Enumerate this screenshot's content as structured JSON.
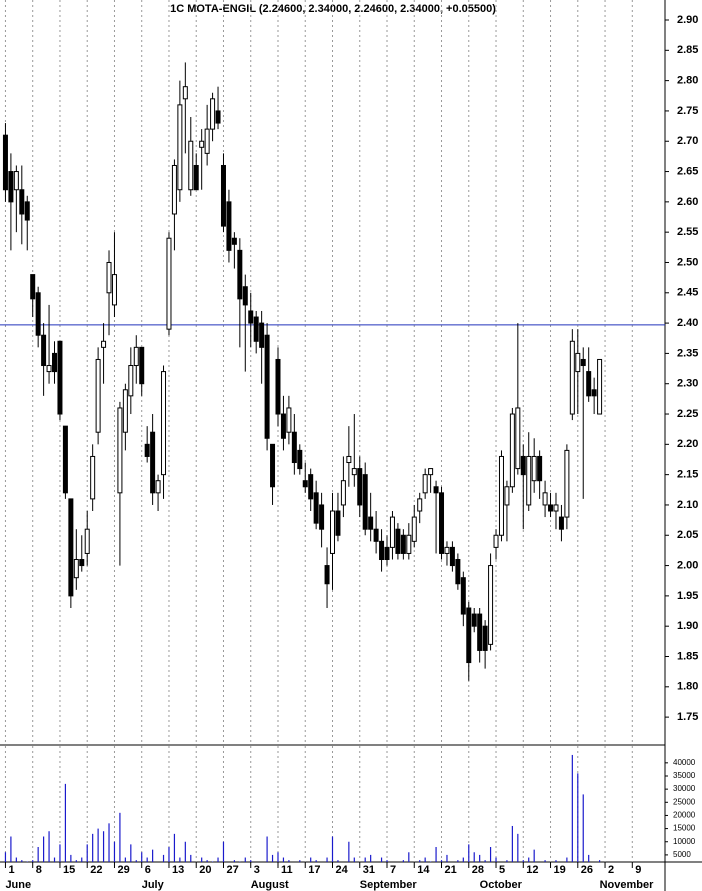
{
  "chart_data": {
    "type": "candlestick",
    "title": "1C MOTA-ENGIL (2.24600, 2.34000, 2.24600, 2.34000, +0.05500)",
    "x": [
      0,
      1,
      2,
      3,
      4,
      5,
      6,
      7,
      8,
      9,
      10,
      11,
      12,
      13,
      14,
      15,
      16,
      17,
      18,
      19,
      20,
      21,
      22,
      23,
      24,
      25,
      26,
      27,
      28,
      29,
      30,
      31,
      32,
      33,
      34,
      35,
      36,
      37,
      38,
      39,
      40,
      41,
      42,
      43,
      44,
      45,
      46,
      47,
      48,
      49,
      50,
      51,
      52,
      53,
      54,
      55,
      56,
      57,
      58,
      59,
      60,
      61,
      62,
      63,
      64,
      65,
      66,
      67,
      68,
      69,
      70,
      71,
      72,
      73,
      74,
      75,
      76,
      77,
      78,
      79,
      80,
      81,
      82,
      83,
      84,
      85,
      86,
      87,
      88,
      89,
      90,
      91,
      92,
      93,
      94,
      95,
      96,
      97,
      98,
      99,
      100,
      101,
      102,
      103,
      104,
      105,
      106,
      107,
      108,
      109
    ],
    "open": [
      2.71,
      2.65,
      2.62,
      2.62,
      2.6,
      2.48,
      2.45,
      2.38,
      2.32,
      2.35,
      2.37,
      2.23,
      2.11,
      1.98,
      2.01,
      2.02,
      2.11,
      2.22,
      2.36,
      2.45,
      2.43,
      2.12,
      2.22,
      2.28,
      2.33,
      2.36,
      2.2,
      2.22,
      2.12,
      2.15,
      2.39,
      2.58,
      2.62,
      2.77,
      2.62,
      2.66,
      2.69,
      2.68,
      2.72,
      2.75,
      2.66,
      2.6,
      2.54,
      2.52,
      2.46,
      2.42,
      2.41,
      2.4,
      2.38,
      2.2,
      2.34,
      2.25,
      2.22,
      2.22,
      2.19,
      2.14,
      2.15,
      2.12,
      2.1,
      2.0,
      2.02,
      2.09,
      2.1,
      2.17,
      2.15,
      2.16,
      2.15,
      2.08,
      2.06,
      2.04,
      2.03,
      2.03,
      2.06,
      2.05,
      2.02,
      2.04,
      2.09,
      2.12,
      2.15,
      2.13,
      2.12,
      2.02,
      2.03,
      2.01,
      1.98,
      1.93,
      1.92,
      1.92,
      1.9,
      1.87,
      2.03,
      2.05,
      2.1,
      2.13,
      2.16,
      2.18,
      2.1,
      2.14,
      2.18,
      2.1,
      2.1,
      2.09,
      2.08,
      2.08,
      2.25,
      2.32,
      2.34,
      2.32,
      2.29,
      2.25
    ],
    "high": [
      2.73,
      2.68,
      2.66,
      2.66,
      2.61,
      2.48,
      2.46,
      2.4,
      2.43,
      2.37,
      2.37,
      2.23,
      2.11,
      2.06,
      2.05,
      2.09,
      2.2,
      2.36,
      2.4,
      2.52,
      2.55,
      2.27,
      2.3,
      2.36,
      2.38,
      2.36,
      2.23,
      2.25,
      2.15,
      2.33,
      2.55,
      2.67,
      2.8,
      2.83,
      2.74,
      2.68,
      2.72,
      2.76,
      2.78,
      2.79,
      2.68,
      2.62,
      2.55,
      2.54,
      2.48,
      2.45,
      2.42,
      2.42,
      2.4,
      2.2,
      2.36,
      2.28,
      2.28,
      2.25,
      2.2,
      2.17,
      2.16,
      2.14,
      2.12,
      2.03,
      2.12,
      2.12,
      2.18,
      2.23,
      2.25,
      2.18,
      2.17,
      2.12,
      2.09,
      2.06,
      2.05,
      2.09,
      2.07,
      2.06,
      2.07,
      2.1,
      2.12,
      2.16,
      2.16,
      2.14,
      2.13,
      2.04,
      2.04,
      2.02,
      1.99,
      1.94,
      1.93,
      1.93,
      1.91,
      2.02,
      2.06,
      2.19,
      2.14,
      2.26,
      2.4,
      2.2,
      2.22,
      2.21,
      2.19,
      2.14,
      2.12,
      2.12,
      2.1,
      2.2,
      2.39,
      2.39,
      2.36,
      2.36,
      2.31,
      2.34
    ],
    "low": [
      2.6,
      2.52,
      2.55,
      2.53,
      2.52,
      2.41,
      2.36,
      2.28,
      2.3,
      2.3,
      2.24,
      2.11,
      1.93,
      1.96,
      1.99,
      2.0,
      2.09,
      2.2,
      2.3,
      2.38,
      2.41,
      2.0,
      2.19,
      2.25,
      2.3,
      2.28,
      2.17,
      2.1,
      2.09,
      2.11,
      2.38,
      2.52,
      2.6,
      2.68,
      2.61,
      2.62,
      2.62,
      2.66,
      2.7,
      2.72,
      2.55,
      2.5,
      2.49,
      2.36,
      2.32,
      2.36,
      2.35,
      2.3,
      2.19,
      2.1,
      2.23,
      2.19,
      2.2,
      2.15,
      2.15,
      2.12,
      2.09,
      2.06,
      2.03,
      1.93,
      1.96,
      2.04,
      2.08,
      2.13,
      2.13,
      2.08,
      2.05,
      2.04,
      2.02,
      1.99,
      2.0,
      2.01,
      2.01,
      2.01,
      2.01,
      2.03,
      2.07,
      2.11,
      2.12,
      2.02,
      2.01,
      2.0,
      1.99,
      1.96,
      1.9,
      1.81,
      1.89,
      1.84,
      1.83,
      1.86,
      2.01,
      2.04,
      2.04,
      2.12,
      2.15,
      2.06,
      2.09,
      2.12,
      2.11,
      2.08,
      2.08,
      2.06,
      2.04,
      2.06,
      2.24,
      2.25,
      2.11,
      2.27,
      2.25,
      2.25
    ],
    "close": [
      2.62,
      2.6,
      2.65,
      2.58,
      2.57,
      2.44,
      2.38,
      2.33,
      2.33,
      2.32,
      2.25,
      2.12,
      1.95,
      2.01,
      2.0,
      2.06,
      2.18,
      2.34,
      2.37,
      2.5,
      2.48,
      2.26,
      2.29,
      2.33,
      2.36,
      2.3,
      2.18,
      2.12,
      2.14,
      2.32,
      2.54,
      2.66,
      2.76,
      2.79,
      2.7,
      2.62,
      2.7,
      2.72,
      2.77,
      2.73,
      2.56,
      2.52,
      2.53,
      2.44,
      2.43,
      2.4,
      2.37,
      2.36,
      2.21,
      2.13,
      2.25,
      2.21,
      2.26,
      2.17,
      2.16,
      2.13,
      2.11,
      2.07,
      2.06,
      1.97,
      2.09,
      2.05,
      2.14,
      2.18,
      2.16,
      2.1,
      2.06,
      2.06,
      2.04,
      2.01,
      2.01,
      2.08,
      2.02,
      2.02,
      2.05,
      2.08,
      2.11,
      2.15,
      2.16,
      2.12,
      2.02,
      2.03,
      2.0,
      1.97,
      1.92,
      1.84,
      1.9,
      1.86,
      1.86,
      2.0,
      2.05,
      2.18,
      2.13,
      2.25,
      2.26,
      2.15,
      2.18,
      2.18,
      2.14,
      2.12,
      2.09,
      2.1,
      2.06,
      2.19,
      2.37,
      2.35,
      2.33,
      2.28,
      2.28,
      2.34
    ],
    "up_color": "#ffffff",
    "down_color": "#000000",
    "line_color": "#000000",
    "ylim": [
      1.704,
      2.933
    ],
    "yticks": [
      {
        "value": 1.75,
        "label": "1.75"
      },
      {
        "value": 1.8,
        "label": "1.80"
      },
      {
        "value": 1.85,
        "label": "1.85"
      },
      {
        "value": 1.9,
        "label": "1.90"
      },
      {
        "value": 1.95,
        "label": "1.95"
      },
      {
        "value": 2.0,
        "label": "2.00"
      },
      {
        "value": 2.05,
        "label": "2.05"
      },
      {
        "value": 2.1,
        "label": "2.10"
      },
      {
        "value": 2.15,
        "label": "2.15"
      },
      {
        "value": 2.2,
        "label": "2.20"
      },
      {
        "value": 2.25,
        "label": "2.25"
      },
      {
        "value": 2.3,
        "label": "2.30"
      },
      {
        "value": 2.35,
        "label": "2.35"
      },
      {
        "value": 2.4,
        "label": "2.40"
      },
      {
        "value": 2.45,
        "label": "2.45"
      },
      {
        "value": 2.5,
        "label": "2.50"
      },
      {
        "value": 2.55,
        "label": "2.55"
      },
      {
        "value": 2.6,
        "label": "2.60"
      },
      {
        "value": 2.65,
        "label": "2.65"
      },
      {
        "value": 2.7,
        "label": "2.70"
      },
      {
        "value": 2.75,
        "label": "2.75"
      },
      {
        "value": 2.8,
        "label": "2.80"
      },
      {
        "value": 2.85,
        "label": "2.85"
      },
      {
        "value": 2.9,
        "label": "2.90"
      }
    ],
    "hline": 2.397,
    "hline_color": "#2233bb",
    "xlim": [
      -1,
      121
    ],
    "xticks": [
      {
        "value": 0,
        "label": "1"
      },
      {
        "value": 5,
        "label": "8"
      },
      {
        "value": 10,
        "label": "15"
      },
      {
        "value": 15,
        "label": "22"
      },
      {
        "value": 20,
        "label": "29"
      },
      {
        "value": 25,
        "label": "6"
      },
      {
        "value": 30,
        "label": "13"
      },
      {
        "value": 35,
        "label": "20"
      },
      {
        "value": 40,
        "label": "27"
      },
      {
        "value": 45,
        "label": "3"
      },
      {
        "value": 50,
        "label": "11"
      },
      {
        "value": 55,
        "label": "17"
      },
      {
        "value": 60,
        "label": "24"
      },
      {
        "value": 65,
        "label": "31"
      },
      {
        "value": 70,
        "label": "7"
      },
      {
        "value": 75,
        "label": "14"
      },
      {
        "value": 80,
        "label": "21"
      },
      {
        "value": 85,
        "label": "28"
      },
      {
        "value": 90,
        "label": "5"
      },
      {
        "value": 95,
        "label": "12"
      },
      {
        "value": 100,
        "label": "19"
      },
      {
        "value": 105,
        "label": "26"
      },
      {
        "value": 110,
        "label": "2"
      },
      {
        "value": 115,
        "label": "9"
      }
    ],
    "months": [
      {
        "value": 0,
        "label": "June"
      },
      {
        "value": 25,
        "label": "July"
      },
      {
        "value": 45,
        "label": "August"
      },
      {
        "value": 65,
        "label": "September"
      },
      {
        "value": 87,
        "label": "October"
      },
      {
        "value": 109,
        "label": "November"
      }
    ],
    "grid": true,
    "volume": {
      "color": "#1a1acc",
      "values": [
        6000,
        12000,
        4000,
        3000,
        2500,
        3000,
        8000,
        12000,
        14000,
        4000,
        9000,
        32000,
        5000,
        3000,
        4000,
        9000,
        13000,
        15000,
        14000,
        17000,
        10000,
        21000,
        4000,
        9000,
        3000,
        6000,
        4000,
        7000,
        2000,
        5000,
        8000,
        13000,
        4000,
        10000,
        5000,
        2000,
        4000,
        3000,
        2500,
        4000,
        10000,
        2000,
        3000,
        2500,
        4000,
        3000,
        2000,
        2000,
        12000,
        5000,
        6000,
        4000,
        3000,
        2000,
        3000,
        2000,
        4000,
        3000,
        2000,
        4000,
        12000,
        3000,
        2000,
        10000,
        4000,
        2000,
        4000,
        5000,
        2000,
        4000,
        3000,
        2000,
        2000,
        3000,
        6000,
        2000,
        3000,
        4000,
        2500,
        8000,
        3000,
        5000,
        2000,
        3000,
        4000,
        9000,
        6000,
        5000,
        3000,
        8000,
        4000,
        2000,
        3000,
        16000,
        13000,
        3000,
        4000,
        7000,
        2000,
        3000,
        2000,
        3000,
        2000,
        4000,
        43000,
        36000,
        28000,
        5000,
        2000,
        3000
      ],
      "ylim": [
        2300,
        46400
      ],
      "yticks": [
        5000,
        10000,
        15000,
        20000,
        25000,
        30000,
        35000,
        40000
      ]
    }
  }
}
